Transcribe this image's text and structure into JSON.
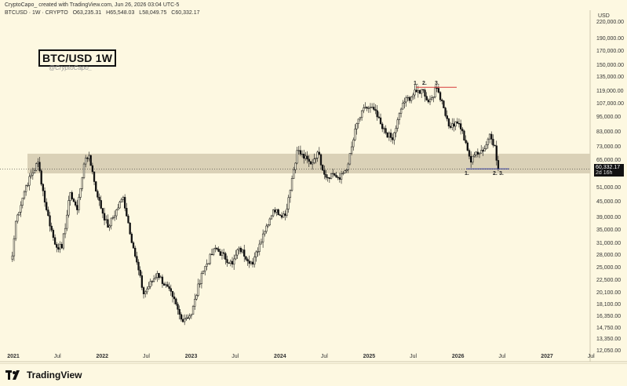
{
  "header": {
    "attribution": "CryptoCapo_ created with TradingView.com, Jun 26, 2026 03:04 UTC-5",
    "symbol_line": "BTCUSD · 1W · CRYPTO",
    "open": "O63,235.31",
    "high": "H65,548.03",
    "low": "L58,049.75",
    "close": "C60,332.17"
  },
  "title": "BTC/USD 1W",
  "author": "@CryptoCapo_",
  "currency": "USD",
  "last_price": {
    "value": "60,332.17",
    "countdown": "2d 16h"
  },
  "footer": {
    "logo_text": "TradingView"
  },
  "annotations": {
    "top": [
      "1.",
      "2.",
      "3."
    ],
    "bottom": [
      "1.",
      "2.",
      "3."
    ]
  },
  "colors": {
    "background": "#fdf8e1",
    "zone": "#d8cfb4",
    "resistance_line": "#d63a3a",
    "support_line": "#2f3aa8",
    "candle": "#111111"
  },
  "chart_data": {
    "type": "candlestick",
    "y_scale": "log",
    "ylim": [
      11000,
      245000
    ],
    "y_ticks": [
      "220,000.00",
      "190,000.00",
      "170,000.00",
      "150,000.00",
      "135,000.00",
      "119,000.00",
      "107,000.00",
      "95,000.00",
      "83,000.00",
      "73,000.00",
      "65,000.00",
      "51,000.00",
      "45,000.00",
      "39,000.00",
      "35,000.00",
      "31,000.00",
      "28,000.00",
      "25,000.00",
      "22,500.00",
      "20,100.00",
      "18,100.00",
      "16,350.00",
      "14,750.00",
      "13,350.00",
      "12,050.00"
    ],
    "x_ticks": [
      "2021",
      "Jul",
      "2022",
      "Jul",
      "2023",
      "Jul",
      "2024",
      "Jul",
      "2025",
      "Jul",
      "2026",
      "Jul",
      "2027",
      "Jul"
    ],
    "zone": [
      58000,
      69000
    ],
    "resistance_level": 124000,
    "support_level": 60332,
    "anchors": [
      [
        "2020-12-28",
        28000
      ],
      [
        "2021-01-11",
        38000
      ],
      [
        "2021-02-22",
        52000
      ],
      [
        "2021-04-12",
        64000
      ],
      [
        "2021-05-17",
        42000
      ],
      [
        "2021-06-21",
        31000
      ],
      [
        "2021-07-19",
        30000
      ],
      [
        "2021-08-23",
        49000
      ],
      [
        "2021-09-20",
        42000
      ],
      [
        "2021-10-18",
        63000
      ],
      [
        "2021-11-08",
        68000
      ],
      [
        "2021-12-13",
        47000
      ],
      [
        "2022-01-24",
        36000
      ],
      [
        "2022-03-28",
        47000
      ],
      [
        "2022-05-09",
        30000
      ],
      [
        "2022-06-20",
        20000
      ],
      [
        "2022-08-15",
        24000
      ],
      [
        "2022-10-17",
        19500
      ],
      [
        "2022-11-21",
        16000
      ],
      [
        "2023-01-02",
        16700
      ],
      [
        "2023-02-13",
        24000
      ],
      [
        "2023-04-10",
        30000
      ],
      [
        "2023-06-19",
        26000
      ],
      [
        "2023-07-17",
        30000
      ],
      [
        "2023-09-11",
        26000
      ],
      [
        "2023-10-23",
        34000
      ],
      [
        "2023-12-04",
        42000
      ],
      [
        "2024-01-22",
        40000
      ],
      [
        "2024-03-11",
        71000
      ],
      [
        "2024-05-06",
        63000
      ],
      [
        "2024-06-03",
        70000
      ],
      [
        "2024-07-08",
        56000
      ],
      [
        "2024-08-05",
        58000
      ],
      [
        "2024-09-02",
        55000
      ],
      [
        "2024-10-07",
        63000
      ],
      [
        "2024-11-11",
        90000
      ],
      [
        "2024-12-16",
        104000
      ],
      [
        "2025-01-20",
        102000
      ],
      [
        "2025-02-24",
        86000
      ],
      [
        "2025-04-07",
        78000
      ],
      [
        "2025-05-19",
        108000
      ],
      [
        "2025-07-14",
        119000
      ],
      [
        "2025-08-11",
        121000
      ],
      [
        "2025-09-01",
        109000
      ],
      [
        "2025-10-06",
        123000
      ],
      [
        "2025-10-27",
        110000
      ],
      [
        "2025-11-24",
        88000
      ],
      [
        "2026-01-05",
        90000
      ],
      [
        "2026-02-02",
        76000
      ],
      [
        "2026-02-23",
        64000
      ],
      [
        "2026-03-16",
        70000
      ],
      [
        "2026-04-20",
        72000
      ],
      [
        "2026-05-11",
        82000
      ],
      [
        "2026-06-01",
        74000
      ],
      [
        "2026-06-15",
        60332
      ]
    ]
  }
}
